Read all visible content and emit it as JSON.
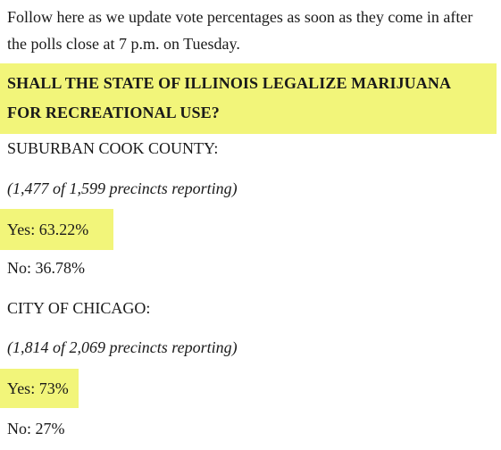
{
  "intro": "Follow here as we update vote percentages as soon as they come in after the polls close at 7 p.m. on Tuesday.",
  "question": {
    "line1": "SHALL THE STATE OF ILLINOIS LEGALIZE MARIJUANA",
    "line2": "FOR RECREATIONAL USE?"
  },
  "suburban": {
    "heading": "SUBURBAN COOK COUNTY:",
    "precincts": "(1,477 of 1,599 precincts reporting)",
    "yes": "Yes: 63.22%",
    "no": "No: 36.78%"
  },
  "chicago": {
    "heading": "CITY OF CHICAGO:",
    "precincts": "(1,814 of 2,069 precincts reporting)",
    "yes": "Yes: 73%",
    "no": "No: 27%"
  },
  "colors": {
    "highlight": "#f2f57a",
    "text": "#1a1a1a"
  }
}
